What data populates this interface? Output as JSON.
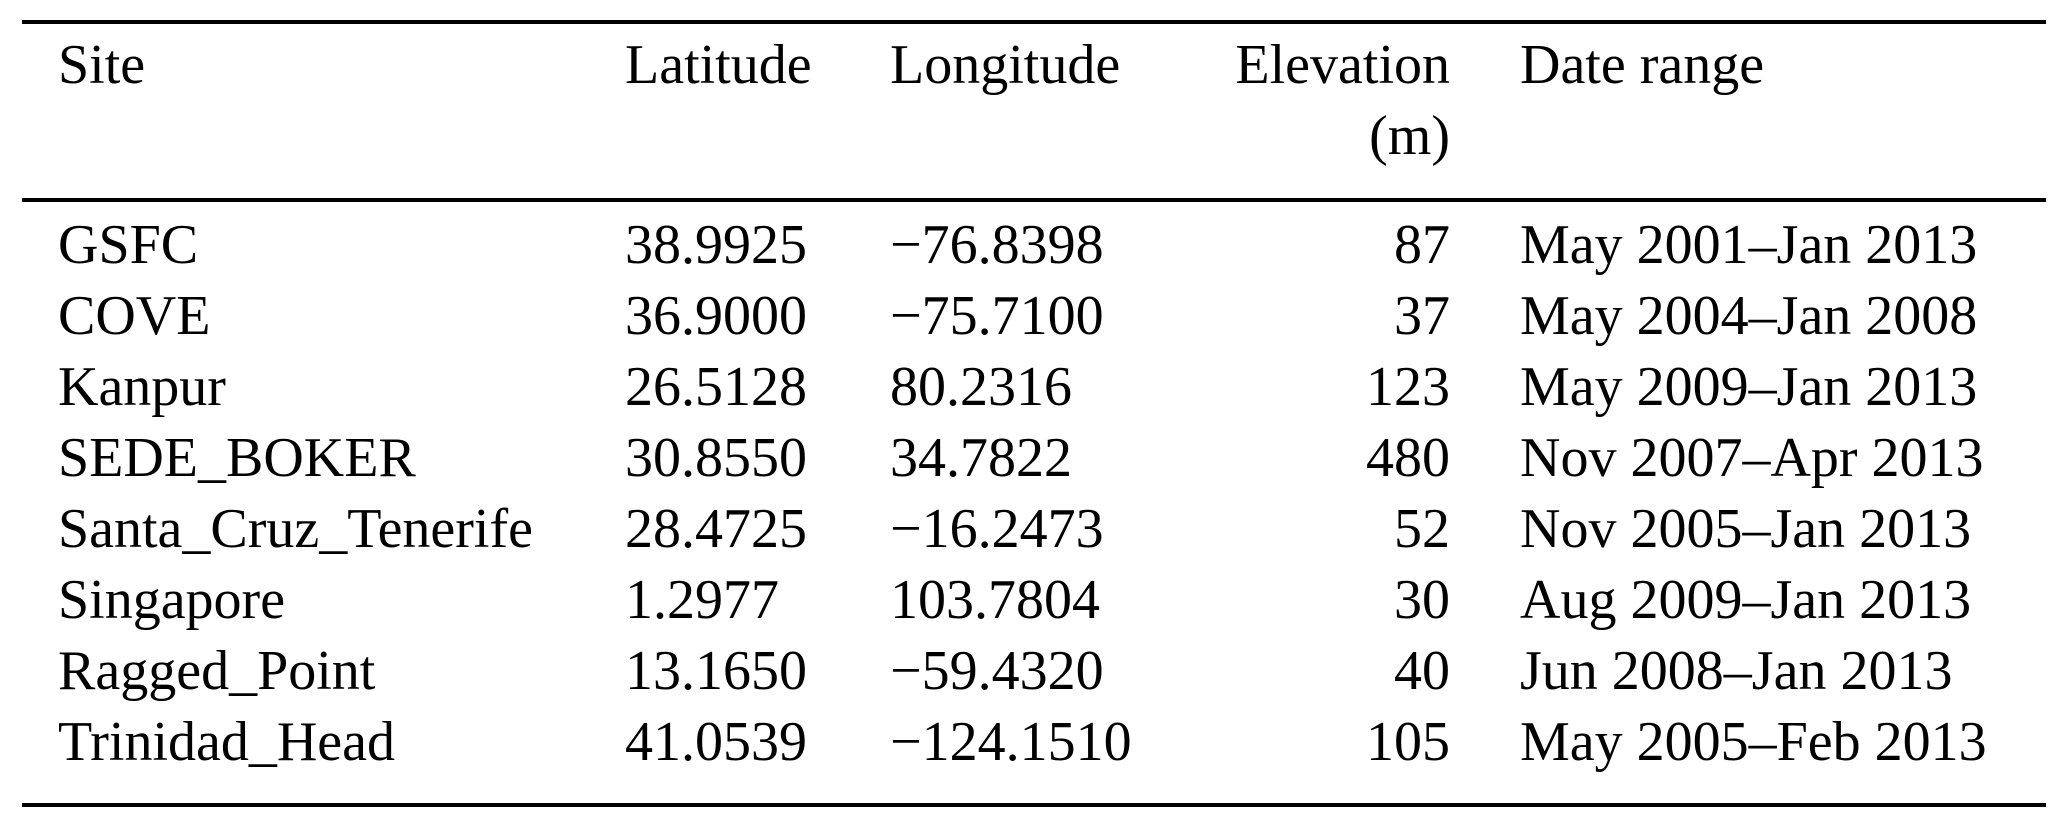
{
  "table": {
    "columns": [
      {
        "key": "site",
        "label": "Site",
        "align": "left"
      },
      {
        "key": "latitude",
        "label": "Latitude",
        "align": "left"
      },
      {
        "key": "longitude",
        "label": "Longitude",
        "align": "left"
      },
      {
        "key": "elevation",
        "label": "Elevation",
        "unit": "(m)",
        "align": "right"
      },
      {
        "key": "date_range",
        "label": "Date range",
        "align": "left"
      }
    ],
    "rows": [
      {
        "site": "GSFC",
        "latitude": "38.9925",
        "longitude": "−76.8398",
        "elevation": "87",
        "date_range": "May 2001–Jan 2013"
      },
      {
        "site": "COVE",
        "latitude": "36.9000",
        "longitude": "−75.7100",
        "elevation": "37",
        "date_range": "May 2004–Jan 2008"
      },
      {
        "site": "Kanpur",
        "latitude": "26.5128",
        "longitude": "80.2316",
        "elevation": "123",
        "date_range": "May 2009–Jan 2013"
      },
      {
        "site": "SEDE_BOKER",
        "latitude": "30.8550",
        "longitude": "34.7822",
        "elevation": "480",
        "date_range": "Nov 2007–Apr 2013"
      },
      {
        "site": "Santa_Cruz_Tenerife",
        "latitude": "28.4725",
        "longitude": "−16.2473",
        "elevation": "52",
        "date_range": "Nov 2005–Jan 2013"
      },
      {
        "site": "Singapore",
        "latitude": "1.2977",
        "longitude": "103.7804",
        "elevation": "30",
        "date_range": "Aug 2009–Jan 2013"
      },
      {
        "site": "Ragged_Point",
        "latitude": "13.1650",
        "longitude": "−59.4320",
        "elevation": "40",
        "date_range": "Jun 2008–Jan 2013"
      },
      {
        "site": "Trinidad_Head",
        "latitude": "41.0539",
        "longitude": "−124.1510",
        "elevation": "105",
        "date_range": "May 2005–Feb 2013"
      }
    ]
  }
}
